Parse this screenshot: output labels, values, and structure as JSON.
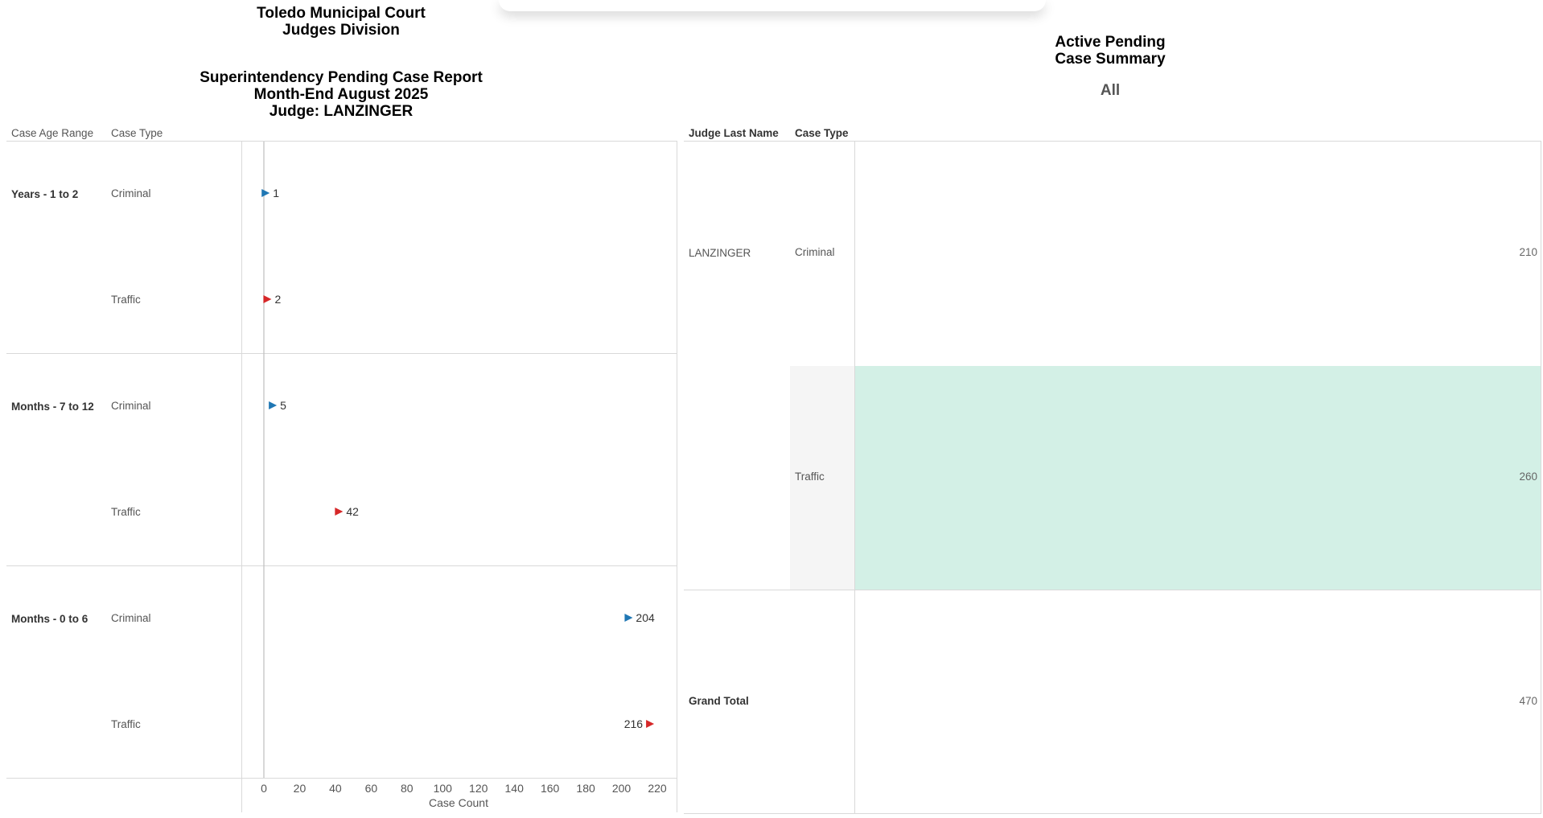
{
  "left_report": {
    "title_line1": "Toledo Municipal Court",
    "title_line2": "Judges Division",
    "subtitle_line1": "Superintendency Pending Case Report",
    "subtitle_line2": "Month-End August 2025",
    "subtitle_line3": "Judge: LANZINGER",
    "col_header_age": "Case Age Range",
    "col_header_type": "Case Type",
    "x_axis_label": "Case Count"
  },
  "chart_data": {
    "type": "scatter",
    "xlabel": "Case Count",
    "xlim": [
      0,
      220
    ],
    "x_ticks": [
      "0",
      "20",
      "40",
      "60",
      "80",
      "100",
      "120",
      "140",
      "160",
      "180",
      "200",
      "220"
    ],
    "colors": {
      "Criminal": "#1f77b4",
      "Traffic": "#d62728"
    },
    "groups": [
      {
        "label": "Years - 1 to 2",
        "rows": [
          {
            "type": "Criminal",
            "value": 1,
            "value_label": "1"
          },
          {
            "type": "Traffic",
            "value": 2,
            "value_label": "2"
          }
        ]
      },
      {
        "label": "Months - 7 to 12",
        "rows": [
          {
            "type": "Criminal",
            "value": 5,
            "value_label": "5"
          },
          {
            "type": "Traffic",
            "value": 42,
            "value_label": "42"
          }
        ]
      },
      {
        "label": "Months - 0 to 6",
        "rows": [
          {
            "type": "Criminal",
            "value": 204,
            "value_label": "204"
          },
          {
            "type": "Traffic",
            "value": 216,
            "value_label": "216"
          }
        ]
      }
    ]
  },
  "right_summary": {
    "title_line1": "Active Pending",
    "title_line2": "Case Summary",
    "filter_value": "All",
    "col_header_judge": "Judge Last Name",
    "col_header_type": "Case Type",
    "judge_name": "LANZINGER",
    "rows": [
      {
        "type": "Criminal",
        "value": "210"
      },
      {
        "type": "Traffic",
        "value": "260"
      }
    ],
    "grand_total_label": "Grand Total",
    "grand_total_value": "470",
    "highlight_color": "#d3f0e6"
  }
}
